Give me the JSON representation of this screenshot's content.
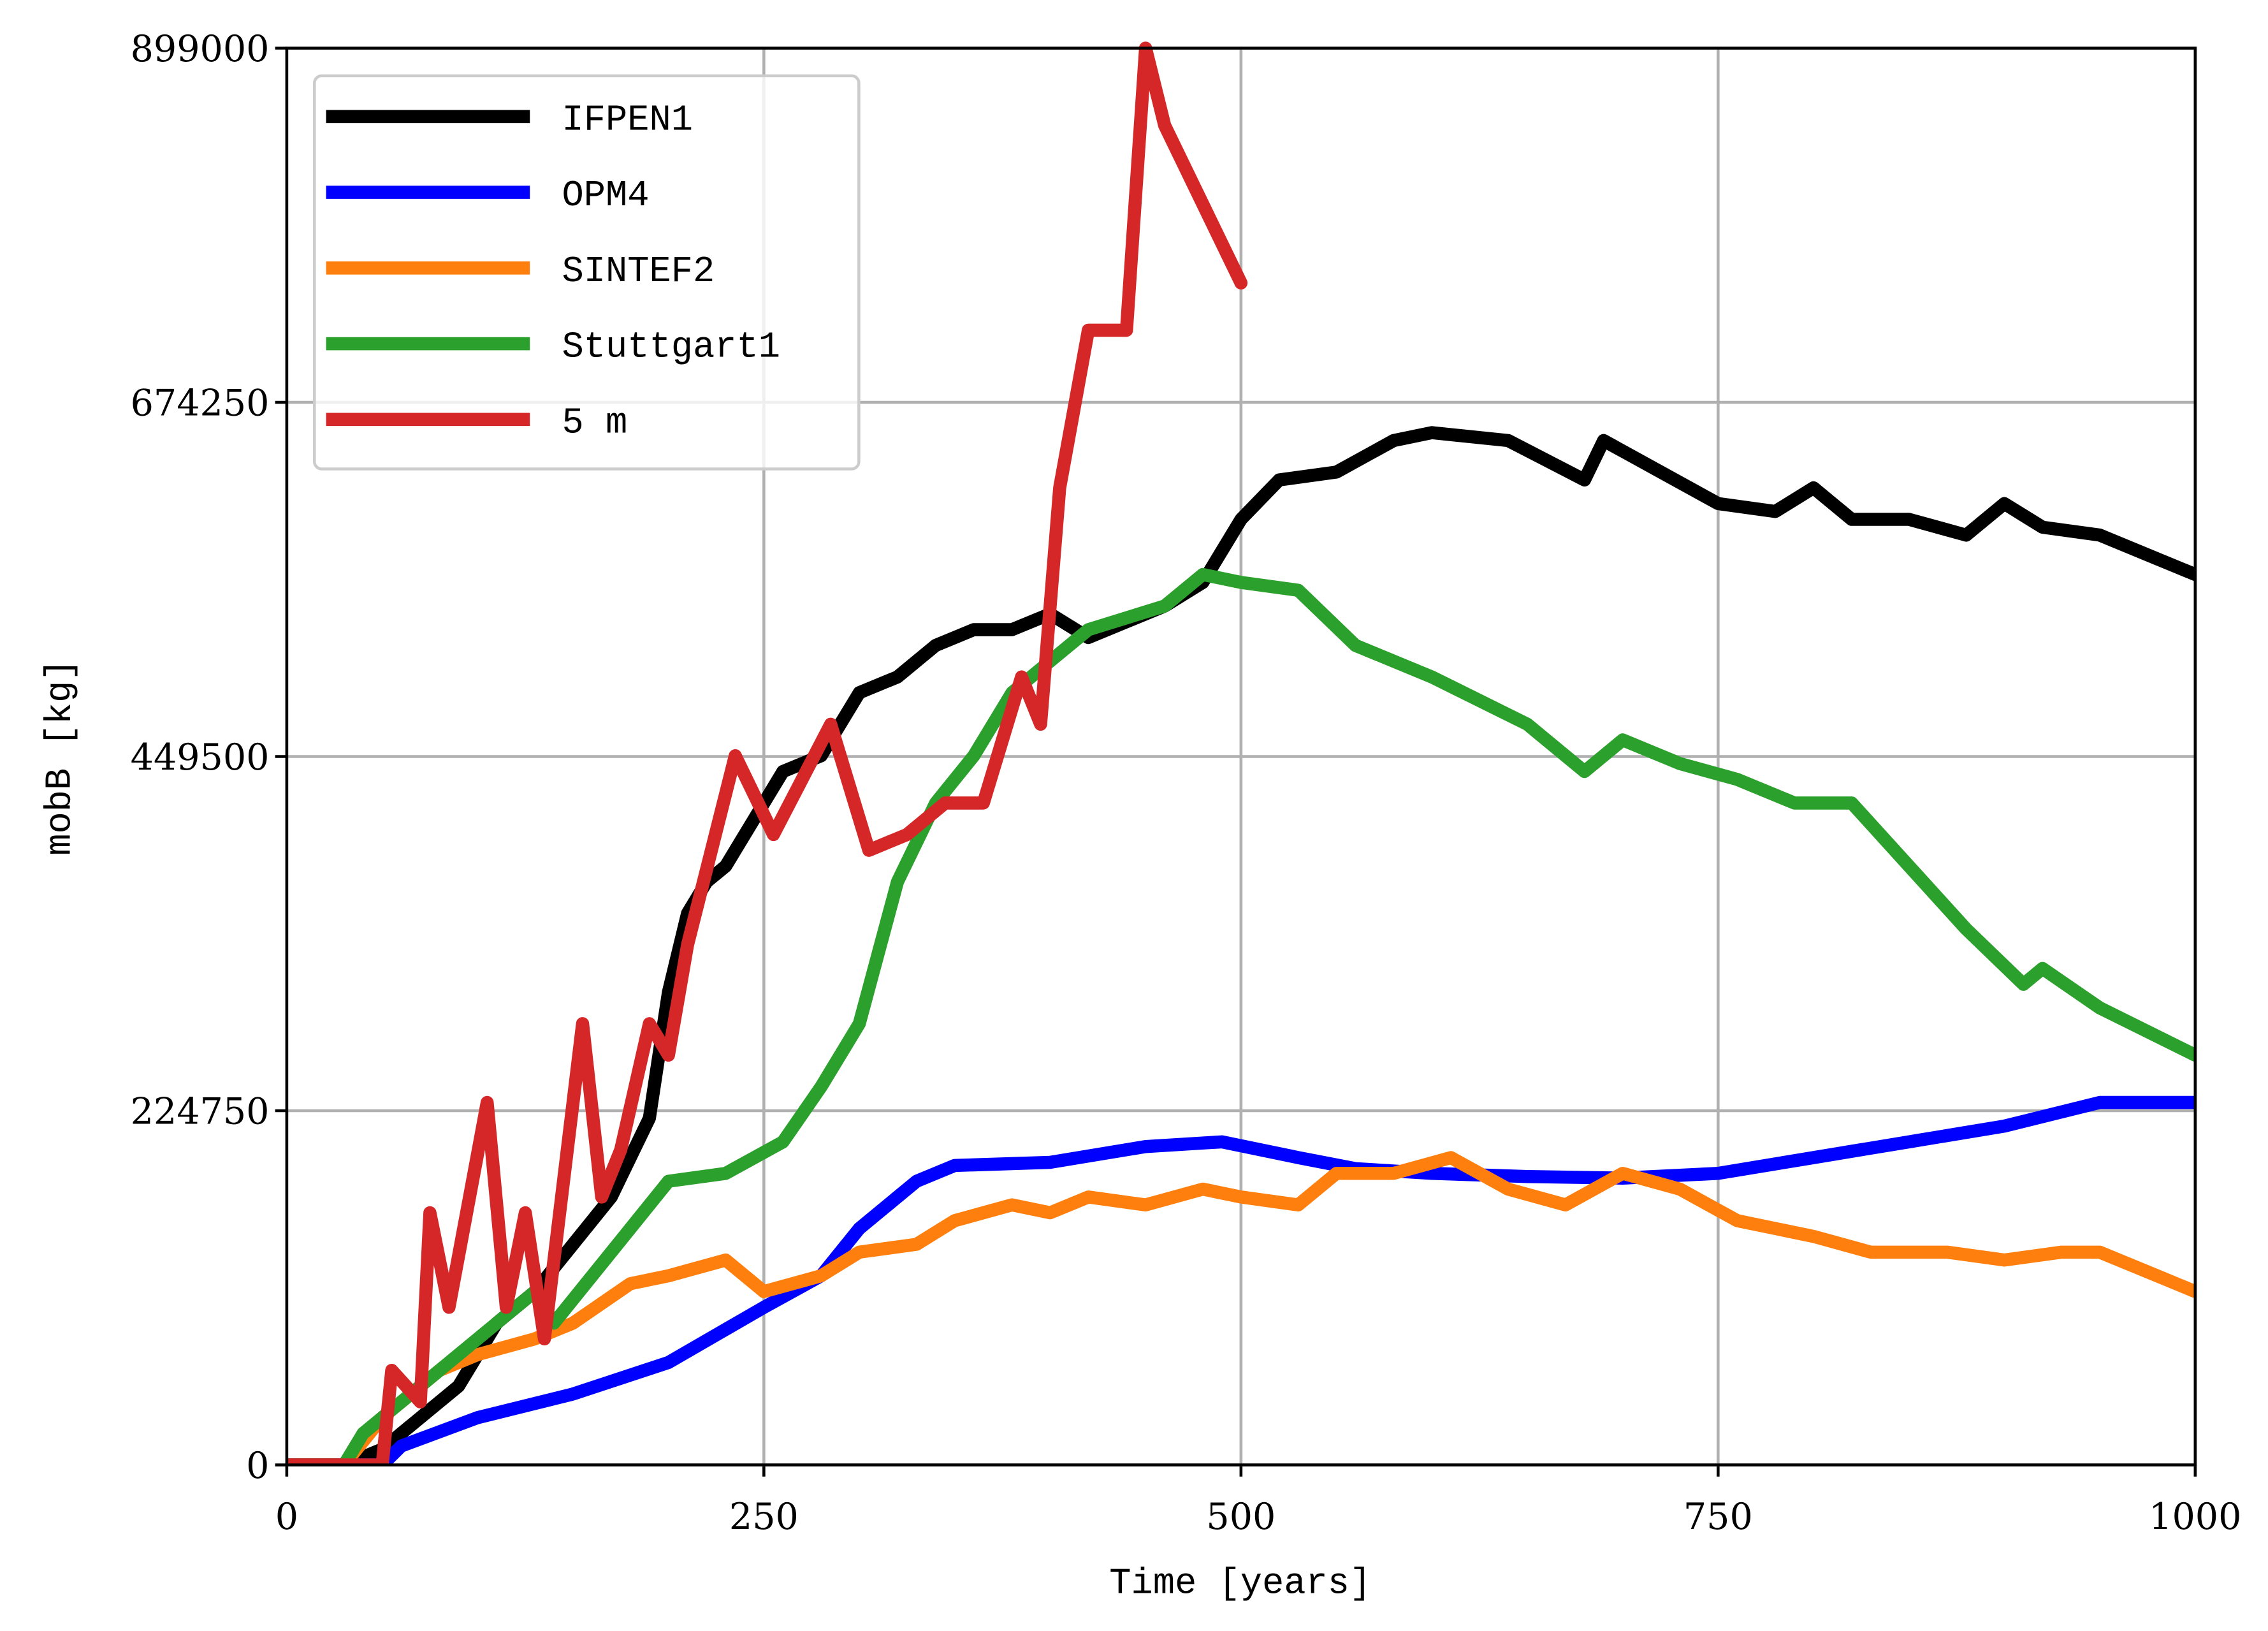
{
  "chart_data": {
    "type": "line",
    "xlabel": "Time [years]",
    "ylabel": "mobB [kg]",
    "xlim": [
      0,
      1000
    ],
    "xticks": [
      0,
      250,
      500,
      750,
      1000
    ],
    "ylim": [
      0,
      899000
    ],
    "yticks": [
      0,
      224750,
      449500,
      674250,
      899000
    ],
    "grid": true,
    "legend": "upper left",
    "series": [
      {
        "name": "IFPEN1",
        "color": "#000000",
        "x": [
          0,
          30,
          50,
          70,
          90,
          110,
          130,
          150,
          170,
          190,
          200,
          210,
          220,
          230,
          250,
          260,
          280,
          300,
          320,
          340,
          360,
          380,
          400,
          420,
          440,
          460,
          480,
          500,
          520,
          550,
          580,
          600,
          640,
          680,
          690,
          720,
          750,
          780,
          800,
          820,
          850,
          880,
          900,
          920,
          950,
          980,
          1000
        ],
        "values": [
          0,
          0,
          10000,
          30000,
          50000,
          90000,
          110000,
          140000,
          170000,
          220000,
          300000,
          350000,
          370000,
          380000,
          420000,
          440000,
          450000,
          490000,
          500000,
          520000,
          530000,
          530000,
          540000,
          525000,
          535000,
          545000,
          560000,
          600000,
          625000,
          630000,
          650000,
          655000,
          650000,
          625000,
          650000,
          630000,
          610000,
          605000,
          620000,
          600000,
          600000,
          590000,
          610000,
          595000,
          590000,
          575000,
          565000
        ]
      },
      {
        "name": "OPM4",
        "color": "#0000ff",
        "x": [
          0,
          50,
          60,
          100,
          150,
          200,
          250,
          280,
          300,
          330,
          350,
          400,
          450,
          490,
          530,
          560,
          600,
          650,
          700,
          750,
          800,
          850,
          900,
          950,
          1000
        ],
        "values": [
          0,
          0,
          12000,
          30000,
          45000,
          65000,
          100000,
          120000,
          150000,
          180000,
          190000,
          192000,
          202000,
          205000,
          195000,
          188000,
          185000,
          183000,
          182000,
          185000,
          195000,
          205000,
          215000,
          230000,
          230000
        ]
      },
      {
        "name": "SINTEF2",
        "color": "#ff7f0e",
        "x": [
          0,
          30,
          50,
          80,
          100,
          130,
          150,
          180,
          200,
          230,
          250,
          280,
          300,
          330,
          350,
          380,
          400,
          420,
          450,
          480,
          500,
          530,
          550,
          580,
          610,
          640,
          670,
          700,
          730,
          760,
          800,
          830,
          870,
          900,
          930,
          950,
          980,
          1000
        ],
        "values": [
          0,
          0,
          30000,
          60000,
          70000,
          80000,
          90000,
          115000,
          120000,
          130000,
          110000,
          120000,
          135000,
          140000,
          155000,
          165000,
          160000,
          170000,
          165000,
          175000,
          170000,
          165000,
          185000,
          185000,
          195000,
          175000,
          165000,
          185000,
          175000,
          155000,
          145000,
          135000,
          135000,
          130000,
          135000,
          135000,
          120000,
          110000
        ]
      },
      {
        "name": "Stuttgart1",
        "color": "#2ca02c",
        "x": [
          0,
          30,
          40,
          70,
          100,
          130,
          140,
          160,
          180,
          200,
          230,
          260,
          280,
          300,
          320,
          340,
          360,
          380,
          400,
          420,
          460,
          480,
          500,
          530,
          560,
          600,
          650,
          680,
          700,
          730,
          760,
          790,
          820,
          850,
          880,
          910,
          920,
          950,
          1000
        ],
        "values": [
          0,
          0,
          20000,
          50000,
          80000,
          110000,
          90000,
          120000,
          150000,
          180000,
          185000,
          205000,
          240000,
          280000,
          370000,
          420000,
          450000,
          490000,
          510000,
          530000,
          545000,
          565000,
          560000,
          555000,
          520000,
          500000,
          470000,
          440000,
          460000,
          445000,
          435000,
          420000,
          420000,
          380000,
          340000,
          305000,
          315000,
          290000,
          260000
        ]
      },
      {
        "name": "5 m",
        "color": "#d62728",
        "x": [
          0,
          50,
          55,
          70,
          75,
          85,
          95,
          105,
          115,
          125,
          135,
          155,
          165,
          175,
          190,
          200,
          210,
          235,
          255,
          285,
          305,
          325,
          345,
          365,
          385,
          395,
          405,
          420,
          440,
          450,
          460,
          500
        ],
        "values": [
          0,
          0,
          60000,
          40000,
          160000,
          100000,
          165000,
          230000,
          100000,
          160000,
          80000,
          280000,
          170000,
          200000,
          280000,
          260000,
          330000,
          450000,
          400000,
          470000,
          390000,
          400000,
          420000,
          420000,
          500000,
          470000,
          620000,
          720000,
          720000,
          899000,
          850000,
          750000
        ]
      }
    ]
  }
}
